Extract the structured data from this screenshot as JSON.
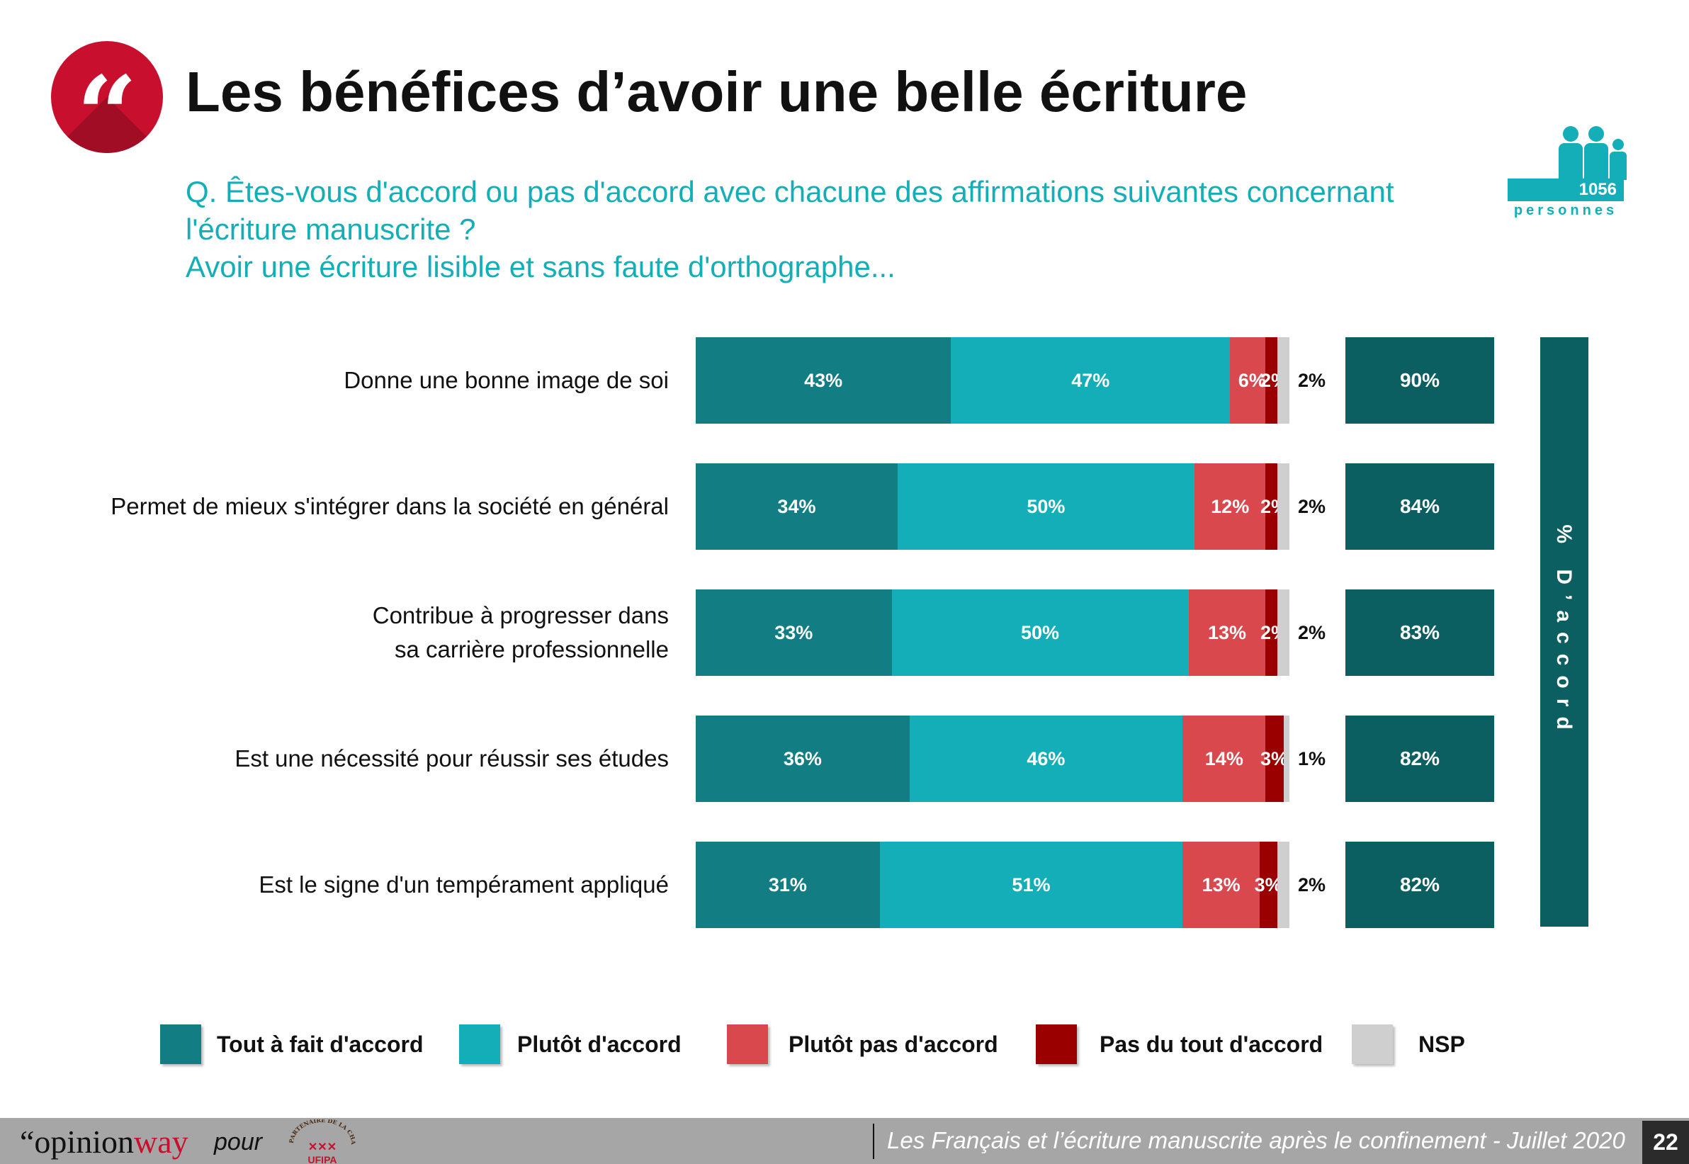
{
  "header": {
    "quote_glyph": "“",
    "title": "Les bénéfices d’avoir une belle écriture",
    "question_lines": [
      "Q. Êtes-vous d'accord ou pas d'accord avec chacune des affirmations suivantes concernant",
      "l'écriture manuscrite ?",
      "Avoir une écriture lisible et sans faute d'orthographe..."
    ],
    "sample_count": "1056",
    "sample_label": "personnes"
  },
  "colors": {
    "tout_a_fait": "#127e84",
    "plutot": "#14aeb8",
    "plutot_pas": "#d9484d",
    "pas_du_tout": "#9b0000",
    "nsp": "#cfcfcf",
    "total": "#0b5f61"
  },
  "chart_data": {
    "type": "bar",
    "orientation": "horizontal-stacked",
    "unit": "%",
    "categories": [
      "Donne une bonne image de soi",
      "Permet de mieux s'intégrer dans la société en général",
      "Contribue à progresser dans sa carrière professionnelle",
      "Est une nécessité pour réussir ses études",
      "Est le signe d'un tempérament appliqué"
    ],
    "series": [
      {
        "name": "Tout à fait d'accord",
        "values": [
          43,
          34,
          33,
          36,
          31
        ]
      },
      {
        "name": "Plutôt d'accord",
        "values": [
          47,
          50,
          50,
          46,
          51
        ]
      },
      {
        "name": "Plutôt pas d'accord",
        "values": [
          6,
          12,
          13,
          14,
          13
        ]
      },
      {
        "name": "Pas du tout d'accord",
        "values": [
          2,
          2,
          2,
          3,
          3
        ]
      },
      {
        "name": "NSP",
        "values": [
          2,
          2,
          2,
          1,
          2
        ]
      }
    ],
    "totals": {
      "name": "% D’accord",
      "values": [
        90,
        84,
        83,
        82,
        82
      ]
    },
    "legend_position": "bottom"
  },
  "footer": {
    "brand_quote": "“",
    "brand_a": "opinion",
    "brand_b": "way",
    "pour": "pour",
    "partner_text": "UFIPA",
    "partner_arc": "PARTENAIRE DE LA CHARTE",
    "study": "Les Français et l’écriture manuscrite après le confinement - Juillet 2020",
    "page": "22"
  }
}
